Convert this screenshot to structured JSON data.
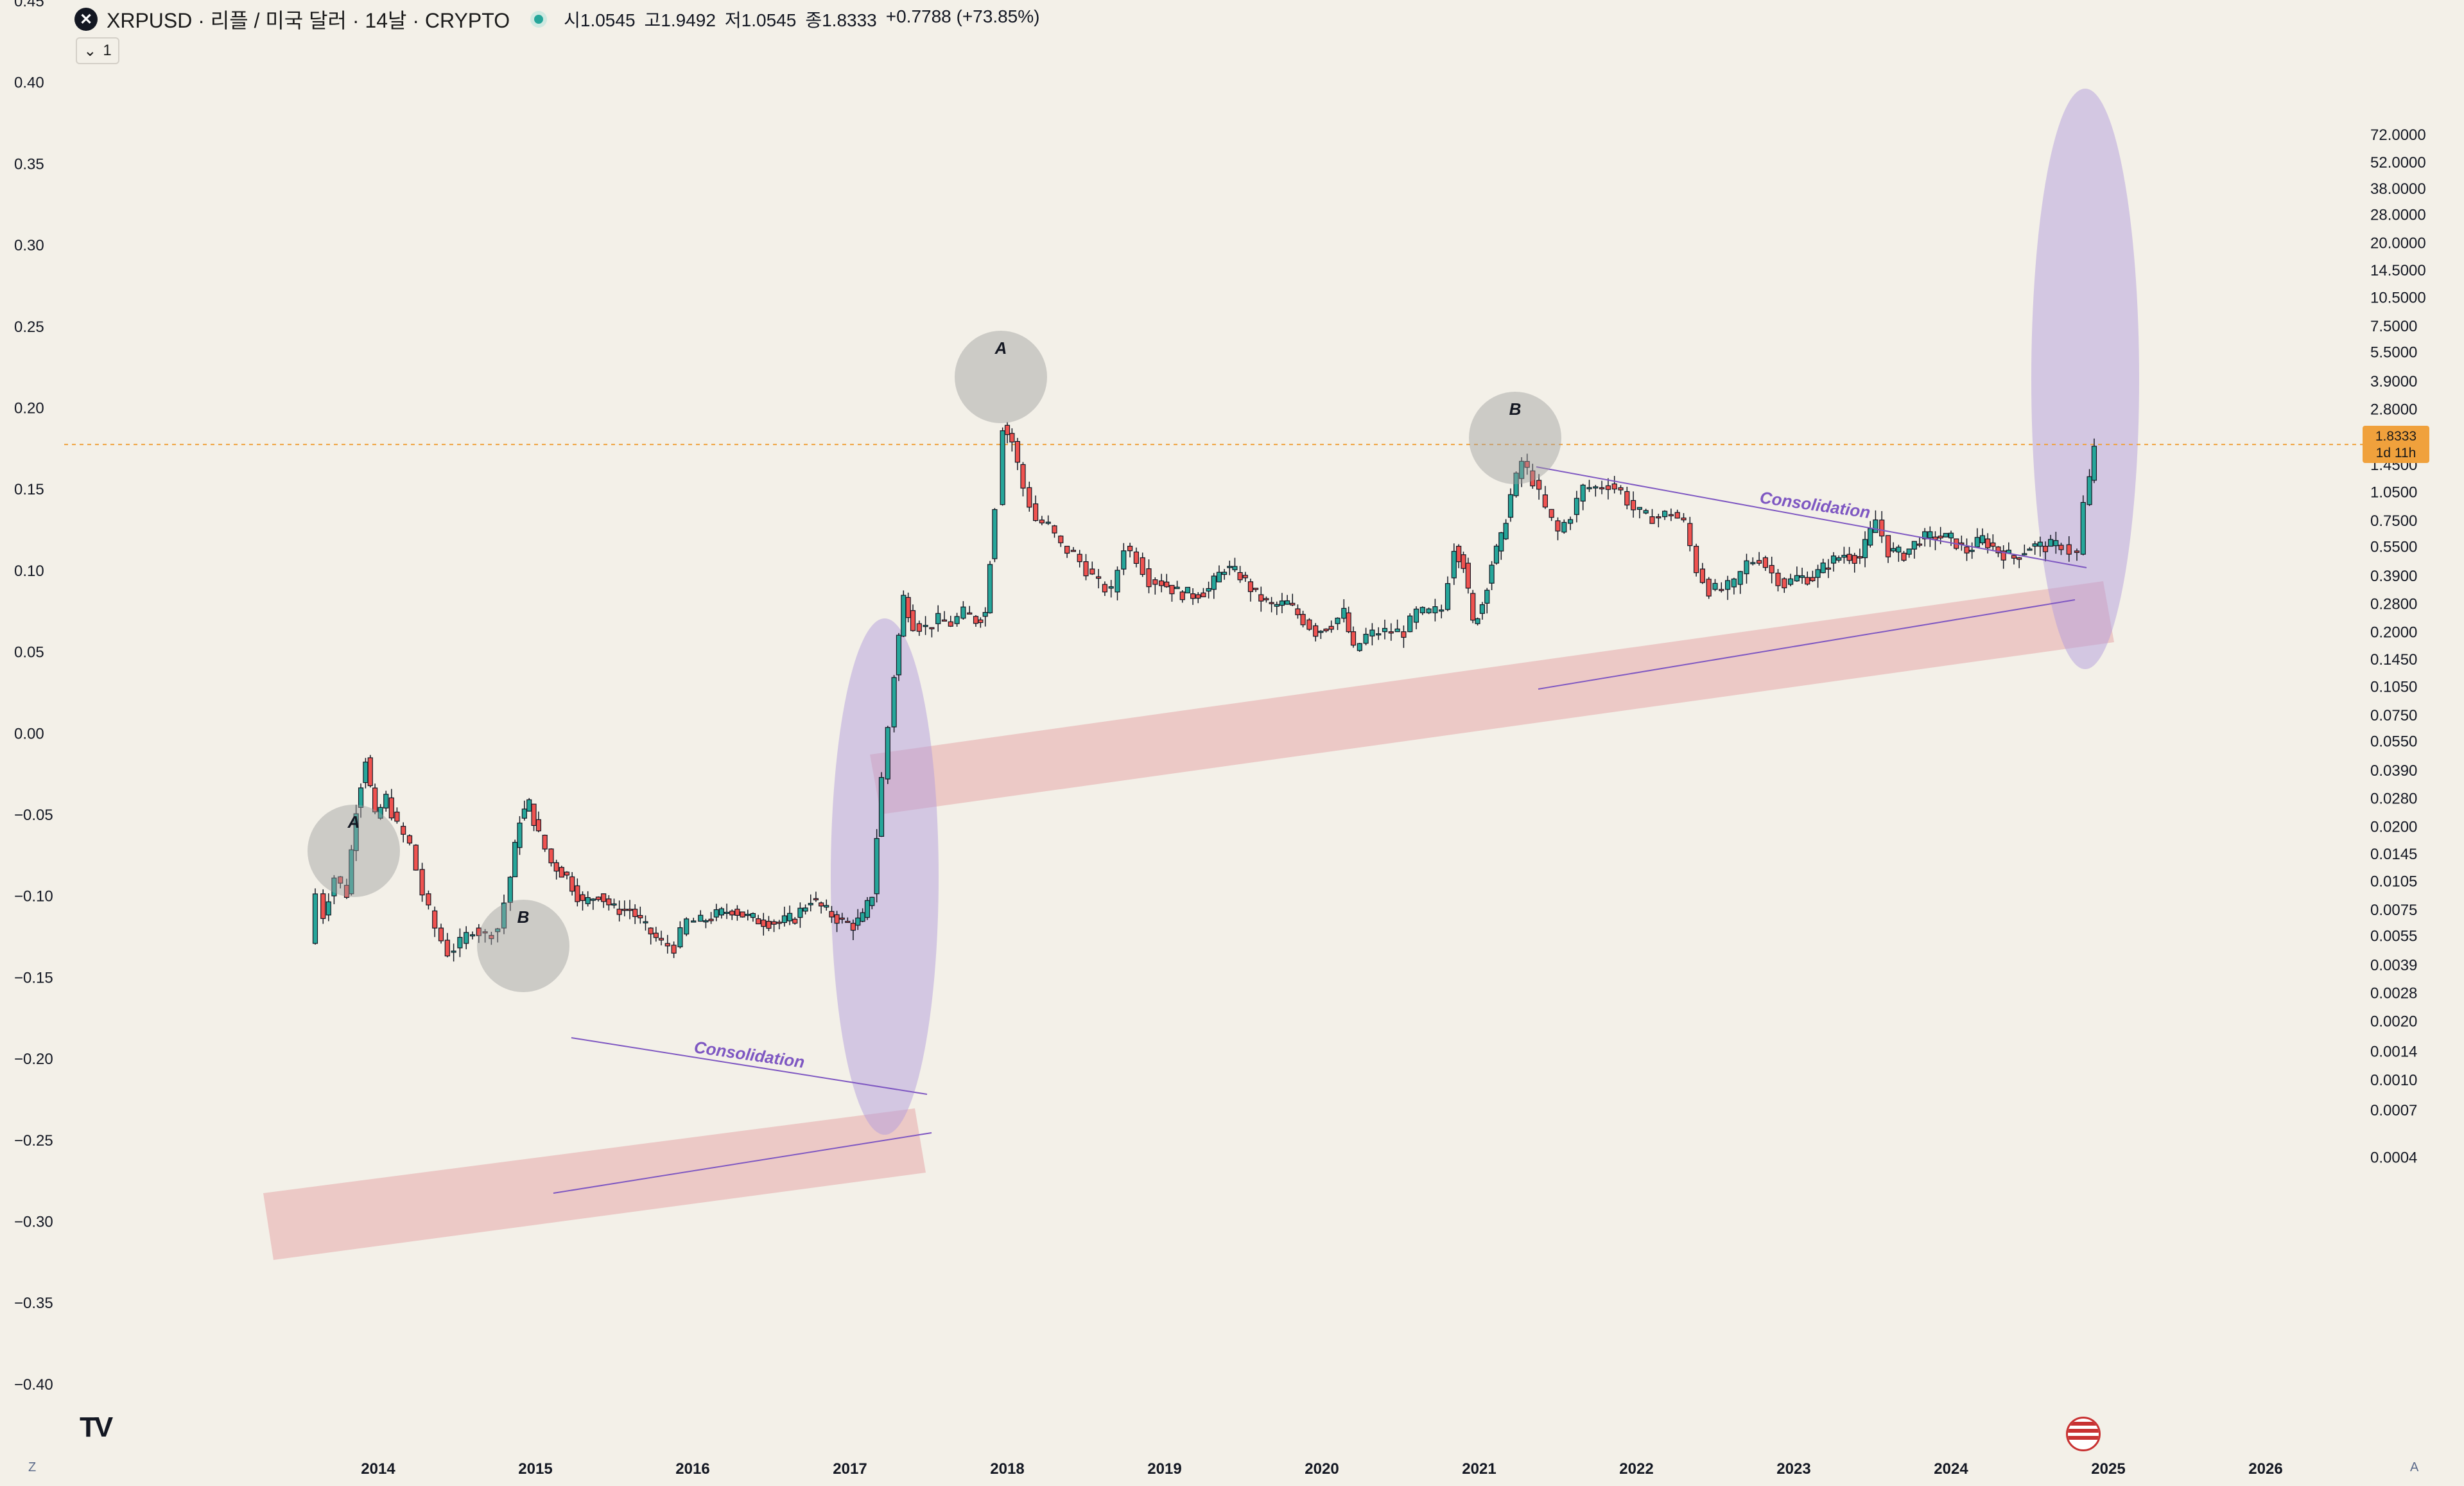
{
  "header": {
    "logo_glyph": "✕",
    "title": "XRPUSD · 리플 / 미국 달러 · 14날 · CRYPTO",
    "open": "시1.0545",
    "high": "고1.9492",
    "low": "저1.0545",
    "close": "종1.8333",
    "change": "+0.7788 (+73.85%)",
    "interval_button": "1"
  },
  "price_tag": {
    "price": "1.8333",
    "countdown": "1d 11h"
  },
  "footer": {
    "logo": "TV",
    "left_corner": "Z",
    "right_corner": "A"
  },
  "colors": {
    "background": "#f3f0e8",
    "up": "#26a69a",
    "down": "#ef5350",
    "band": "#e8b4b4",
    "ellipse": "#b39ddb",
    "circle": "#9e9e9e",
    "price_line": "#f0a13c",
    "trendline": "#7e57c2"
  },
  "chart_data": {
    "type": "candlestick",
    "x_ticks": [
      "2014",
      "2015",
      "2016",
      "2017",
      "2018",
      "2019",
      "2020",
      "2021",
      "2022",
      "2023",
      "2024",
      "2025",
      "2026"
    ],
    "left_axis_ticks": [
      "0.45",
      "0.40",
      "0.35",
      "0.30",
      "0.25",
      "0.20",
      "0.15",
      "0.10",
      "0.05",
      "0.00",
      "−0.05",
      "−0.10",
      "−0.15",
      "−0.20",
      "−0.25",
      "−0.30",
      "−0.35",
      "−0.40"
    ],
    "right_axis_ticks": [
      "72.0000",
      "52.0000",
      "38.0000",
      "28.0000",
      "20.0000",
      "14.5000",
      "10.5000",
      "7.5000",
      "5.5000",
      "3.9000",
      "2.8000",
      "2.0000",
      "1.4500",
      "1.0500",
      "0.7500",
      "0.5500",
      "0.3900",
      "0.2800",
      "0.2000",
      "0.1450",
      "0.1050",
      "0.0750",
      "0.0550",
      "0.0390",
      "0.0280",
      "0.0200",
      "0.0145",
      "0.0105",
      "0.0075",
      "0.0055",
      "0.0039",
      "0.0028",
      "0.0020",
      "0.0014",
      "0.0010",
      "0.0007",
      "0.0004"
    ],
    "right_axis_scale": "log",
    "grid": false,
    "last_price": 1.8333,
    "annotations": [
      {
        "label": "A",
        "year": 2013.92,
        "price": 0.055
      },
      {
        "label": "B",
        "year": 2014.94,
        "price": 0.028
      },
      {
        "label": "A",
        "year": 2017.97,
        "price": 3.3
      },
      {
        "label": "B",
        "year": 2021.27,
        "price": 1.9
      },
      {
        "label": "Consolidation",
        "year": 2015.37,
        "price": 0.0085
      },
      {
        "label": "Consolidation",
        "year": 2023.17,
        "price": 1.05
      }
    ],
    "price_path": [
      [
        2013.55,
        0.005
      ],
      [
        2013.6,
        0.009
      ],
      [
        2013.65,
        0.007
      ],
      [
        2013.72,
        0.011
      ],
      [
        2013.8,
        0.009
      ],
      [
        2013.86,
        0.025
      ],
      [
        2013.92,
        0.045
      ],
      [
        2013.98,
        0.022
      ],
      [
        2014.05,
        0.028
      ],
      [
        2014.12,
        0.02
      ],
      [
        2014.2,
        0.016
      ],
      [
        2014.28,
        0.009
      ],
      [
        2014.36,
        0.006
      ],
      [
        2014.44,
        0.0045
      ],
      [
        2014.52,
        0.005
      ],
      [
        2014.6,
        0.006
      ],
      [
        2014.68,
        0.0055
      ],
      [
        2014.76,
        0.006
      ],
      [
        2014.84,
        0.011
      ],
      [
        2014.9,
        0.022
      ],
      [
        2014.96,
        0.026
      ],
      [
        2015.02,
        0.018
      ],
      [
        2015.1,
        0.013
      ],
      [
        2015.2,
        0.011
      ],
      [
        2015.3,
        0.008
      ],
      [
        2015.4,
        0.009
      ],
      [
        2015.5,
        0.0075
      ],
      [
        2015.6,
        0.0075
      ],
      [
        2015.7,
        0.006
      ],
      [
        2015.8,
        0.005
      ],
      [
        2015.88,
        0.0048
      ],
      [
        2015.96,
        0.0065
      ],
      [
        2016.05,
        0.0065
      ],
      [
        2016.15,
        0.007
      ],
      [
        2016.25,
        0.0075
      ],
      [
        2016.35,
        0.0068
      ],
      [
        2016.45,
        0.0065
      ],
      [
        2016.55,
        0.0064
      ],
      [
        2016.65,
        0.0068
      ],
      [
        2016.75,
        0.0085
      ],
      [
        2016.85,
        0.0073
      ],
      [
        2016.95,
        0.0065
      ],
      [
        2017.02,
        0.0062
      ],
      [
        2017.08,
        0.0068
      ],
      [
        2017.14,
        0.009
      ],
      [
        2017.2,
        0.035
      ],
      [
        2017.28,
        0.12
      ],
      [
        2017.34,
        0.3
      ],
      [
        2017.4,
        0.22
      ],
      [
        2017.48,
        0.21
      ],
      [
        2017.56,
        0.23
      ],
      [
        2017.64,
        0.22
      ],
      [
        2017.72,
        0.25
      ],
      [
        2017.8,
        0.23
      ],
      [
        2017.86,
        0.25
      ],
      [
        2017.92,
        0.9
      ],
      [
        2017.97,
        2.3
      ],
      [
        2018.03,
        1.9
      ],
      [
        2018.1,
        1.1
      ],
      [
        2018.18,
        0.75
      ],
      [
        2018.26,
        0.7
      ],
      [
        2018.34,
        0.55
      ],
      [
        2018.42,
        0.5
      ],
      [
        2018.5,
        0.42
      ],
      [
        2018.58,
        0.35
      ],
      [
        2018.66,
        0.32
      ],
      [
        2018.74,
        0.55
      ],
      [
        2018.82,
        0.48
      ],
      [
        2018.9,
        0.37
      ],
      [
        2018.98,
        0.36
      ],
      [
        2019.08,
        0.32
      ],
      [
        2019.18,
        0.31
      ],
      [
        2019.28,
        0.33
      ],
      [
        2019.38,
        0.43
      ],
      [
        2019.48,
        0.39
      ],
      [
        2019.58,
        0.31
      ],
      [
        2019.68,
        0.27
      ],
      [
        2019.78,
        0.28
      ],
      [
        2019.88,
        0.23
      ],
      [
        2019.96,
        0.2
      ],
      [
        2020.06,
        0.22
      ],
      [
        2020.14,
        0.25
      ],
      [
        2020.2,
        0.16
      ],
      [
        2020.28,
        0.19
      ],
      [
        2020.36,
        0.2
      ],
      [
        2020.44,
        0.2
      ],
      [
        2020.52,
        0.2
      ],
      [
        2020.6,
        0.25
      ],
      [
        2020.68,
        0.25
      ],
      [
        2020.76,
        0.26
      ],
      [
        2020.84,
        0.55
      ],
      [
        2020.9,
        0.45
      ],
      [
        2020.96,
        0.22
      ],
      [
        2021.02,
        0.28
      ],
      [
        2021.08,
        0.45
      ],
      [
        2021.14,
        0.6
      ],
      [
        2021.2,
        1.0
      ],
      [
        2021.27,
        1.5
      ],
      [
        2021.34,
        1.2
      ],
      [
        2021.42,
        0.85
      ],
      [
        2021.5,
        0.65
      ],
      [
        2021.58,
        0.8
      ],
      [
        2021.66,
        1.1
      ],
      [
        2021.74,
        1.1
      ],
      [
        2021.82,
        1.15
      ],
      [
        2021.9,
        1.05
      ],
      [
        2021.98,
        0.85
      ],
      [
        2022.06,
        0.78
      ],
      [
        2022.14,
        0.78
      ],
      [
        2022.22,
        0.82
      ],
      [
        2022.3,
        0.72
      ],
      [
        2022.38,
        0.42
      ],
      [
        2022.46,
        0.33
      ],
      [
        2022.54,
        0.33
      ],
      [
        2022.62,
        0.35
      ],
      [
        2022.7,
        0.45
      ],
      [
        2022.78,
        0.48
      ],
      [
        2022.86,
        0.4
      ],
      [
        2022.94,
        0.35
      ],
      [
        2023.02,
        0.38
      ],
      [
        2023.12,
        0.38
      ],
      [
        2023.22,
        0.45
      ],
      [
        2023.32,
        0.5
      ],
      [
        2023.42,
        0.48
      ],
      [
        2023.52,
        0.75
      ],
      [
        2023.6,
        0.52
      ],
      [
        2023.7,
        0.5
      ],
      [
        2023.8,
        0.6
      ],
      [
        2023.9,
        0.62
      ],
      [
        2024.0,
        0.6
      ],
      [
        2024.1,
        0.52
      ],
      [
        2024.2,
        0.6
      ],
      [
        2024.3,
        0.52
      ],
      [
        2024.4,
        0.48
      ],
      [
        2024.5,
        0.55
      ],
      [
        2024.6,
        0.55
      ],
      [
        2024.7,
        0.56
      ],
      [
        2024.75,
        0.52
      ],
      [
        2024.8,
        0.5
      ],
      [
        2024.84,
        0.9
      ],
      [
        2024.88,
        1.2
      ],
      [
        2024.91,
        1.83
      ]
    ]
  }
}
